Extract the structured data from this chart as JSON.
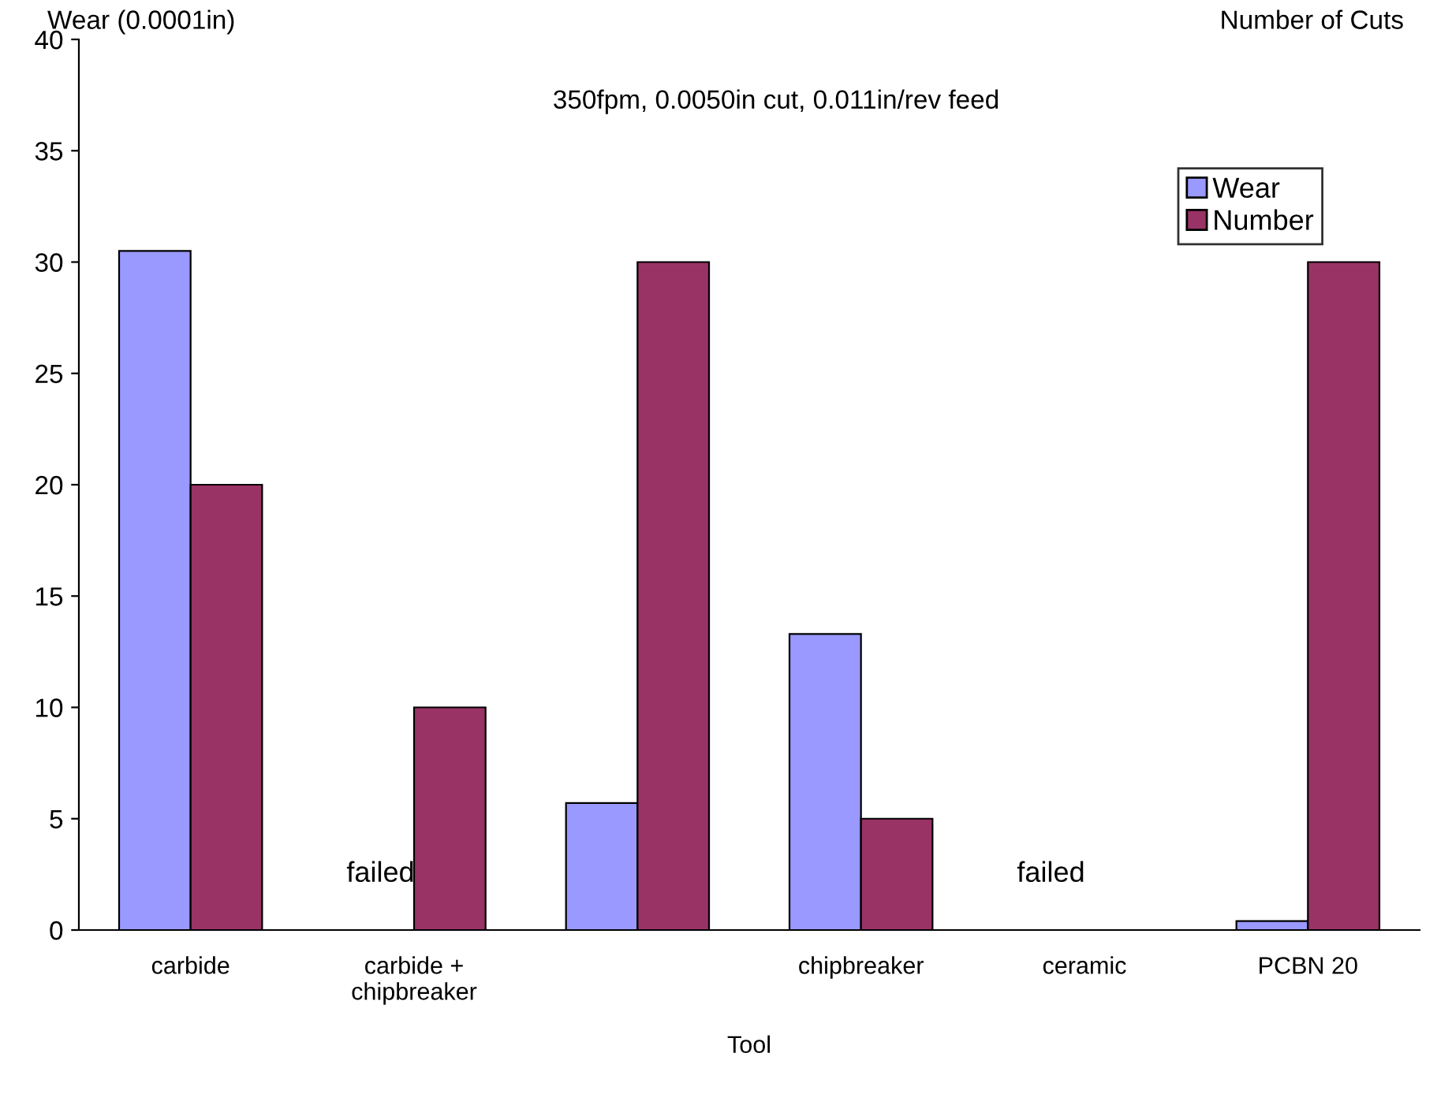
{
  "chart_data": {
    "type": "bar",
    "title": "350fpm, 0.0050in cut, 0.011in/rev feed",
    "xlabel": "Tool",
    "ylabel": "Wear (0.0001in)",
    "y2label": "Number of Cuts",
    "categories": [
      "carbide",
      "carbide +\nchipbreaker",
      null,
      "chipbreaker",
      "ceramic",
      "PCBN 20"
    ],
    "series": [
      {
        "name": "Wear",
        "color": "#9999ff",
        "values": [
          30.5,
          null,
          5.7,
          13.3,
          null,
          0.4
        ]
      },
      {
        "name": "Number",
        "color": "#993366",
        "values": [
          20,
          10,
          30,
          5,
          null,
          30
        ]
      }
    ],
    "annotations": [
      "failed",
      "failed"
    ],
    "ylim": [
      0,
      40
    ],
    "yticks": [
      0,
      5,
      10,
      15,
      20,
      25,
      30,
      35,
      40
    ],
    "legend": "top right",
    "grid": false
  }
}
